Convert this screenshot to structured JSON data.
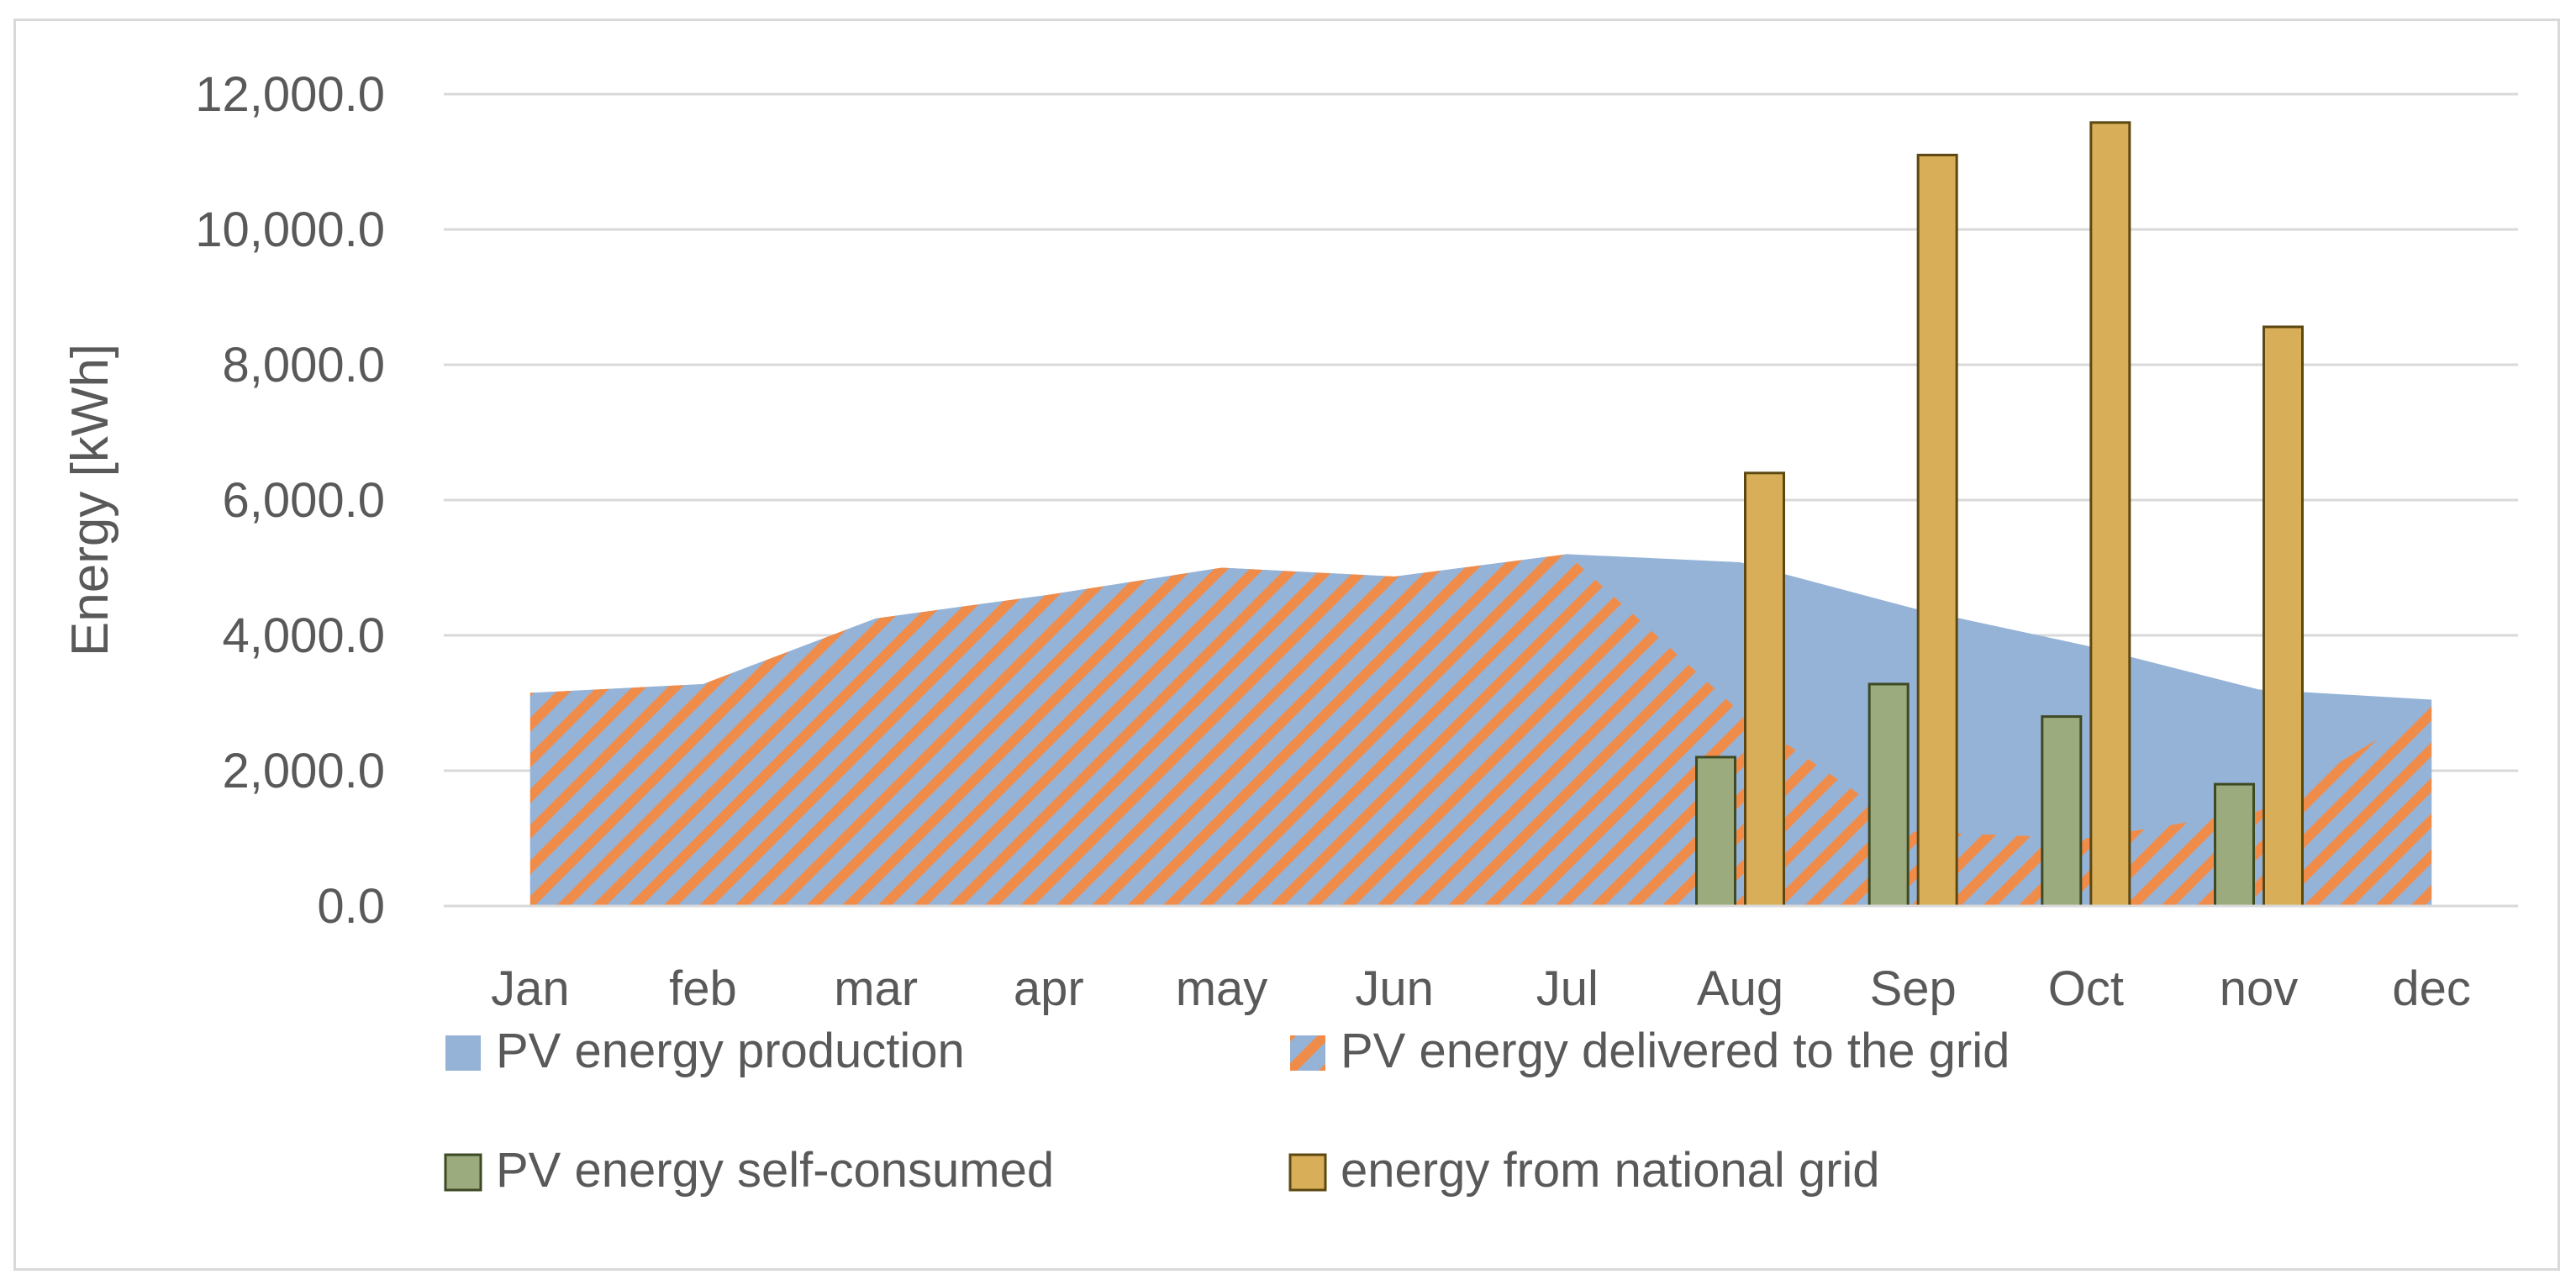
{
  "chart_data": {
    "type": "area+bar",
    "ylabel": "Energy [kWh]",
    "ylim": [
      0,
      12000
    ],
    "yticks": [
      0,
      2000,
      4000,
      6000,
      8000,
      10000,
      12000
    ],
    "ytick_labels": [
      "0.0",
      "2,000.0",
      "4,000.0",
      "6,000.0",
      "8,000.0",
      "10,000.0",
      "12,000.0"
    ],
    "categories": [
      "Jan",
      "feb",
      "mar",
      "apr",
      "may",
      "Jun",
      "Jul",
      "Aug",
      "Sep",
      "Oct",
      "nov",
      "dec"
    ],
    "grid": true,
    "legend_position": "bottom",
    "series": [
      {
        "name": "PV energy production",
        "kind": "area",
        "color": "#95b3d7",
        "values": [
          3150,
          3280,
          4250,
          4600,
          5000,
          4870,
          5200,
          5080,
          4400,
          3850,
          3200,
          3050
        ]
      },
      {
        "name": "PV energy delivered to the grid",
        "kind": "area-hatched",
        "color": "#f08c4a",
        "values": [
          3150,
          3280,
          4250,
          4600,
          5000,
          4870,
          5200,
          2870,
          1100,
          1000,
          1400,
          2950
        ]
      },
      {
        "name": "PV energy self-consumed",
        "kind": "bar",
        "color": "#9bab7d",
        "edge": "#3d4a24",
        "values": [
          0,
          0,
          0,
          0,
          0,
          0,
          0,
          2200,
          3280,
          2800,
          1800,
          0
        ]
      },
      {
        "name": "energy from national grid",
        "kind": "bar",
        "color": "#d9ae58",
        "edge": "#5c4812",
        "values": [
          0,
          0,
          0,
          0,
          0,
          0,
          0,
          6400,
          11100,
          11580,
          8560,
          0
        ]
      }
    ]
  }
}
